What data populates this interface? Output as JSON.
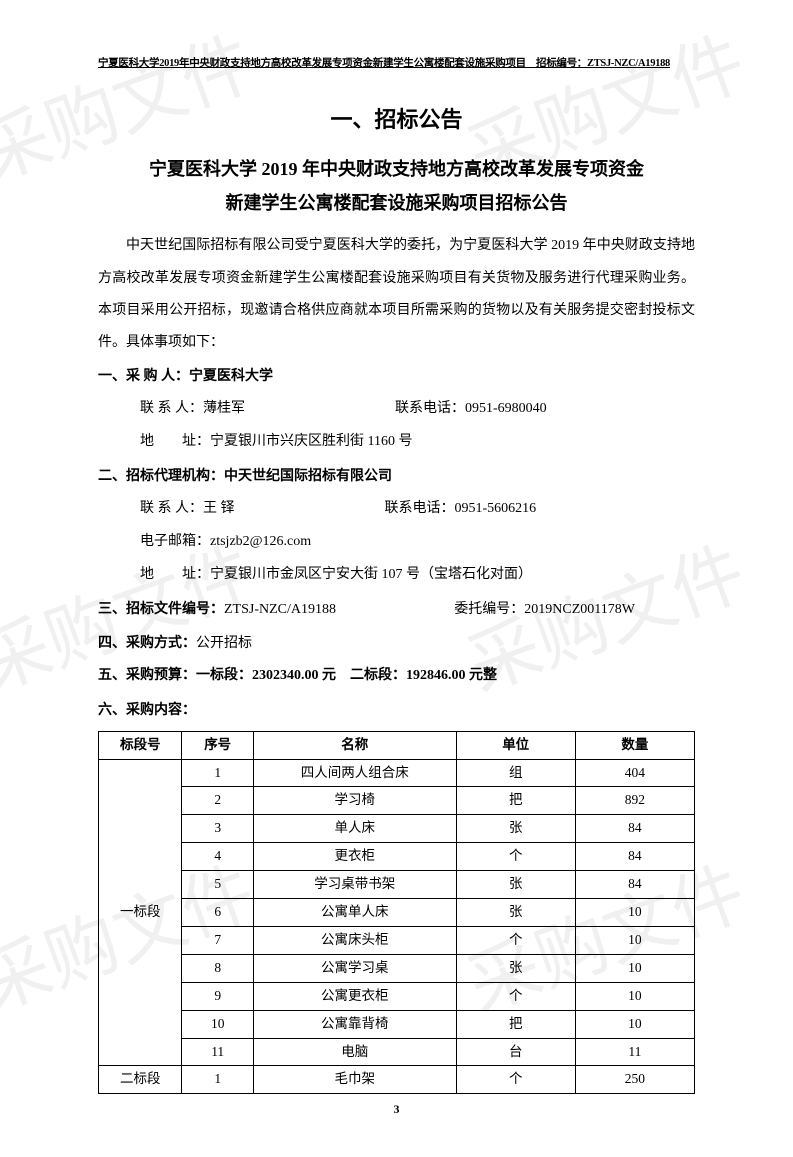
{
  "watermark_text": "采购文件",
  "header": "宁夏医科大学2019年中央财政支持地方高校改革发展专项资金新建学生公寓楼配套设施采购项目　招标编号：ZTSJ-NZC/A19188",
  "title_main": "一、招标公告",
  "title_sub_line1": "宁夏医科大学 2019 年中央财政支持地方高校改革发展专项资金",
  "title_sub_line2": "新建学生公寓楼配套设施采购项目招标公告",
  "intro": "中天世纪国际招标有限公司受宁夏医科大学的委托，为宁夏医科大学 2019 年中央财政支持地方高校改革发展专项资金新建学生公寓楼配套设施采购项目有关货物及服务进行代理采购业务。本项目采用公开招标，现邀请合格供应商就本项目所需采购的货物以及有关服务提交密封投标文件。具体事项如下：",
  "section1": {
    "label": "一、采 购 人：宁夏医科大学",
    "contact_label": "联 系 人：",
    "contact_name": "薄桂军",
    "phone_label": "联系电话：",
    "phone": "0951-6980040",
    "addr_label": "地　　址：",
    "addr": "宁夏银川市兴庆区胜利街 1160 号"
  },
  "section2": {
    "label": "二、招标代理机构：中天世纪国际招标有限公司",
    "contact_label": "联 系 人：",
    "contact_name": "王 铎",
    "phone_label": "联系电话：",
    "phone": "0951-5606216",
    "email_label": "电子邮箱：",
    "email": "ztsjzb2@126.com",
    "addr_label": "地　　址：",
    "addr": "宁夏银川市金凤区宁安大街 107 号（宝塔石化对面）"
  },
  "section3": {
    "label": "三、招标文件编号：",
    "doc_no": "ZTSJ-NZC/A19188",
    "delegate_label": "委托编号：",
    "delegate_no": "2019NCZ001178W"
  },
  "section4": {
    "label": "四、采购方式：",
    "value": "公开招标"
  },
  "section5": {
    "label": "五、采购预算：一标段：2302340.00 元　二标段：192846.00 元整"
  },
  "section6_label": "六、采购内容：",
  "table": {
    "headers": [
      "标段号",
      "序号",
      "名称",
      "单位",
      "数量"
    ],
    "section1_label": "一标段",
    "section2_label": "二标段",
    "rows1": [
      {
        "seq": "1",
        "name": "四人间两人组合床",
        "unit": "组",
        "qty": "404"
      },
      {
        "seq": "2",
        "name": "学习椅",
        "unit": "把",
        "qty": "892"
      },
      {
        "seq": "3",
        "name": "单人床",
        "unit": "张",
        "qty": "84"
      },
      {
        "seq": "4",
        "name": "更衣柜",
        "unit": "个",
        "qty": "84"
      },
      {
        "seq": "5",
        "name": "学习桌带书架",
        "unit": "张",
        "qty": "84"
      },
      {
        "seq": "6",
        "name": "公寓单人床",
        "unit": "张",
        "qty": "10"
      },
      {
        "seq": "7",
        "name": "公寓床头柜",
        "unit": "个",
        "qty": "10"
      },
      {
        "seq": "8",
        "name": "公寓学习桌",
        "unit": "张",
        "qty": "10"
      },
      {
        "seq": "9",
        "name": "公寓更衣柜",
        "unit": "个",
        "qty": "10"
      },
      {
        "seq": "10",
        "name": "公寓靠背椅",
        "unit": "把",
        "qty": "10"
      },
      {
        "seq": "11",
        "name": "电脑",
        "unit": "台",
        "qty": "11"
      }
    ],
    "rows2": [
      {
        "seq": "1",
        "name": "毛巾架",
        "unit": "个",
        "qty": "250"
      }
    ]
  },
  "page_number": "3"
}
